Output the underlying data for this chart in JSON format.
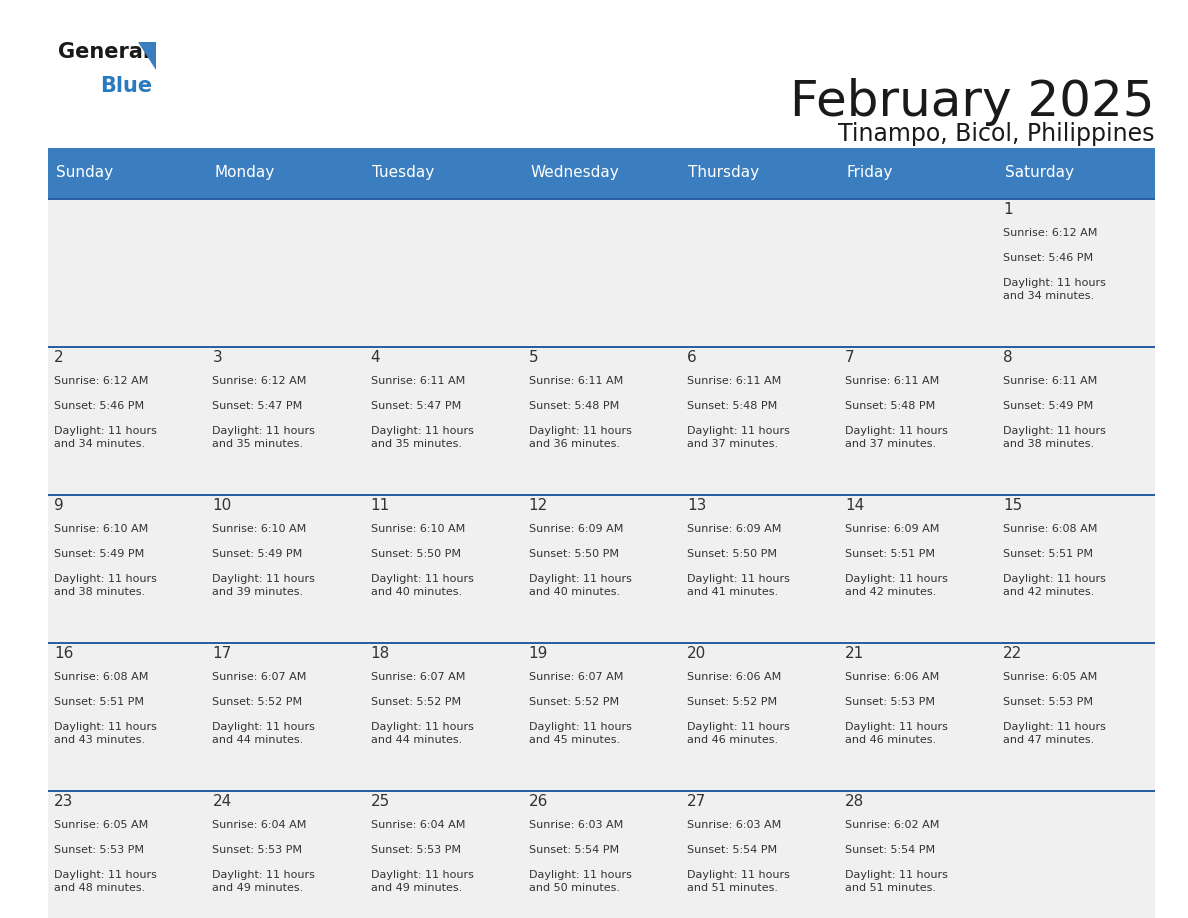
{
  "title": "February 2025",
  "subtitle": "Tinampo, Bicol, Philippines",
  "header_color": "#3a7ebf",
  "header_text_color": "#ffffff",
  "cell_bg_color": "#f0f0f0",
  "cell_text_color": "#333333",
  "border_color": "#2a5fa5",
  "logo_text_color": "#1a1a1a",
  "logo_blue_color": "#2a7abf",
  "logo_triangle_color": "#3a7ebf",
  "days_of_week": [
    "Sunday",
    "Monday",
    "Tuesday",
    "Wednesday",
    "Thursday",
    "Friday",
    "Saturday"
  ],
  "calendar_data": [
    [
      null,
      null,
      null,
      null,
      null,
      null,
      {
        "day": 1,
        "sunrise": "6:12 AM",
        "sunset": "5:46 PM",
        "daylight": "11 hours\nand 34 minutes."
      }
    ],
    [
      {
        "day": 2,
        "sunrise": "6:12 AM",
        "sunset": "5:46 PM",
        "daylight": "11 hours\nand 34 minutes."
      },
      {
        "day": 3,
        "sunrise": "6:12 AM",
        "sunset": "5:47 PM",
        "daylight": "11 hours\nand 35 minutes."
      },
      {
        "day": 4,
        "sunrise": "6:11 AM",
        "sunset": "5:47 PM",
        "daylight": "11 hours\nand 35 minutes."
      },
      {
        "day": 5,
        "sunrise": "6:11 AM",
        "sunset": "5:48 PM",
        "daylight": "11 hours\nand 36 minutes."
      },
      {
        "day": 6,
        "sunrise": "6:11 AM",
        "sunset": "5:48 PM",
        "daylight": "11 hours\nand 37 minutes."
      },
      {
        "day": 7,
        "sunrise": "6:11 AM",
        "sunset": "5:48 PM",
        "daylight": "11 hours\nand 37 minutes."
      },
      {
        "day": 8,
        "sunrise": "6:11 AM",
        "sunset": "5:49 PM",
        "daylight": "11 hours\nand 38 minutes."
      }
    ],
    [
      {
        "day": 9,
        "sunrise": "6:10 AM",
        "sunset": "5:49 PM",
        "daylight": "11 hours\nand 38 minutes."
      },
      {
        "day": 10,
        "sunrise": "6:10 AM",
        "sunset": "5:49 PM",
        "daylight": "11 hours\nand 39 minutes."
      },
      {
        "day": 11,
        "sunrise": "6:10 AM",
        "sunset": "5:50 PM",
        "daylight": "11 hours\nand 40 minutes."
      },
      {
        "day": 12,
        "sunrise": "6:09 AM",
        "sunset": "5:50 PM",
        "daylight": "11 hours\nand 40 minutes."
      },
      {
        "day": 13,
        "sunrise": "6:09 AM",
        "sunset": "5:50 PM",
        "daylight": "11 hours\nand 41 minutes."
      },
      {
        "day": 14,
        "sunrise": "6:09 AM",
        "sunset": "5:51 PM",
        "daylight": "11 hours\nand 42 minutes."
      },
      {
        "day": 15,
        "sunrise": "6:08 AM",
        "sunset": "5:51 PM",
        "daylight": "11 hours\nand 42 minutes."
      }
    ],
    [
      {
        "day": 16,
        "sunrise": "6:08 AM",
        "sunset": "5:51 PM",
        "daylight": "11 hours\nand 43 minutes."
      },
      {
        "day": 17,
        "sunrise": "6:07 AM",
        "sunset": "5:52 PM",
        "daylight": "11 hours\nand 44 minutes."
      },
      {
        "day": 18,
        "sunrise": "6:07 AM",
        "sunset": "5:52 PM",
        "daylight": "11 hours\nand 44 minutes."
      },
      {
        "day": 19,
        "sunrise": "6:07 AM",
        "sunset": "5:52 PM",
        "daylight": "11 hours\nand 45 minutes."
      },
      {
        "day": 20,
        "sunrise": "6:06 AM",
        "sunset": "5:52 PM",
        "daylight": "11 hours\nand 46 minutes."
      },
      {
        "day": 21,
        "sunrise": "6:06 AM",
        "sunset": "5:53 PM",
        "daylight": "11 hours\nand 46 minutes."
      },
      {
        "day": 22,
        "sunrise": "6:05 AM",
        "sunset": "5:53 PM",
        "daylight": "11 hours\nand 47 minutes."
      }
    ],
    [
      {
        "day": 23,
        "sunrise": "6:05 AM",
        "sunset": "5:53 PM",
        "daylight": "11 hours\nand 48 minutes."
      },
      {
        "day": 24,
        "sunrise": "6:04 AM",
        "sunset": "5:53 PM",
        "daylight": "11 hours\nand 49 minutes."
      },
      {
        "day": 25,
        "sunrise": "6:04 AM",
        "sunset": "5:53 PM",
        "daylight": "11 hours\nand 49 minutes."
      },
      {
        "day": 26,
        "sunrise": "6:03 AM",
        "sunset": "5:54 PM",
        "daylight": "11 hours\nand 50 minutes."
      },
      {
        "day": 27,
        "sunrise": "6:03 AM",
        "sunset": "5:54 PM",
        "daylight": "11 hours\nand 51 minutes."
      },
      {
        "day": 28,
        "sunrise": "6:02 AM",
        "sunset": "5:54 PM",
        "daylight": "11 hours\nand 51 minutes."
      },
      null
    ]
  ]
}
